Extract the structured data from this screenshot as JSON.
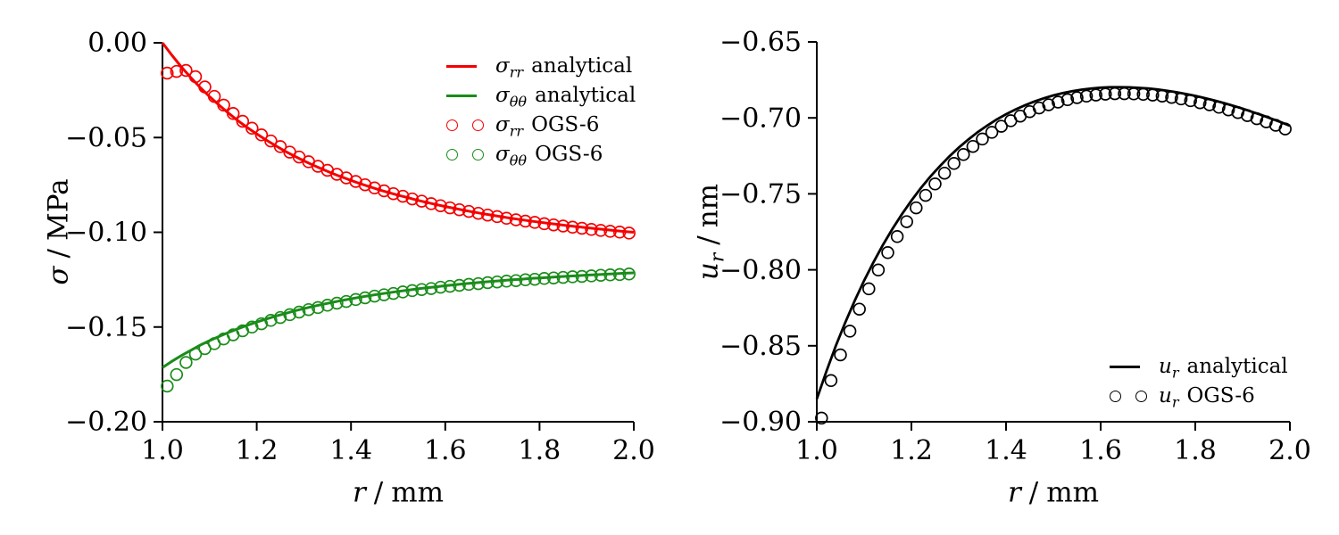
{
  "figure": {
    "background": "#ffffff"
  },
  "chart_data": [
    {
      "id": "stress-vs-radius",
      "type": "line",
      "xlabel": {
        "var": "r",
        "sub": "",
        "sep": "/",
        "unit": "mm"
      },
      "ylabel": {
        "var": "σ",
        "sub": "",
        "sep": "/",
        "unit": "MPa"
      },
      "xlim": [
        1.0,
        2.0
      ],
      "ylim": [
        -0.2,
        0.0
      ],
      "grid": false,
      "legend_position": "upper right",
      "xtick_values": [
        1.0,
        1.2,
        1.4,
        1.6,
        1.8,
        2.0
      ],
      "xtick_labels": [
        "1.0",
        "1.2",
        "1.4",
        "1.6",
        "1.8",
        "2.0"
      ],
      "ytick_values": [
        0.0,
        -0.05,
        -0.1,
        -0.15,
        -0.2
      ],
      "ytick_labels": [
        "0.00",
        "−0.05",
        "−0.10",
        "−0.15",
        "−0.20"
      ],
      "line_x": [
        1.0,
        1.02,
        1.04,
        1.06,
        1.08,
        1.1,
        1.12,
        1.14,
        1.16,
        1.18,
        1.2,
        1.22,
        1.24,
        1.26,
        1.28,
        1.3,
        1.32,
        1.34,
        1.36,
        1.38,
        1.4,
        1.42,
        1.44,
        1.46,
        1.48,
        1.5,
        1.52,
        1.54,
        1.56,
        1.58,
        1.6,
        1.62,
        1.64,
        1.66,
        1.68,
        1.7,
        1.72,
        1.74,
        1.76,
        1.78,
        1.8,
        1.82,
        1.84,
        1.86,
        1.88,
        1.9,
        1.92,
        1.94,
        1.96,
        1.98,
        2.0
      ],
      "point_x": [
        1.01,
        1.03,
        1.05,
        1.07,
        1.09,
        1.11,
        1.13,
        1.15,
        1.17,
        1.19,
        1.21,
        1.23,
        1.25,
        1.27,
        1.29,
        1.31,
        1.33,
        1.35,
        1.37,
        1.39,
        1.41,
        1.43,
        1.45,
        1.47,
        1.49,
        1.51,
        1.53,
        1.55,
        1.57,
        1.59,
        1.61,
        1.63,
        1.65,
        1.67,
        1.69,
        1.71,
        1.73,
        1.75,
        1.77,
        1.79,
        1.81,
        1.83,
        1.85,
        1.87,
        1.89,
        1.91,
        1.93,
        1.95,
        1.97,
        1.99
      ],
      "series": [
        {
          "name": "sigma_rr analytical",
          "kind": "line",
          "color": "#f40000",
          "width": 3,
          "x_ref": "line_x",
          "y": [
            0.0,
            -0.0066,
            -0.0127,
            -0.0183,
            -0.0236,
            -0.0284,
            -0.0329,
            -0.0371,
            -0.0411,
            -0.0447,
            -0.0481,
            -0.0513,
            -0.0543,
            -0.0572,
            -0.0598,
            -0.0623,
            -0.0646,
            -0.0668,
            -0.0689,
            -0.0708,
            -0.0726,
            -0.0744,
            -0.076,
            -0.0776,
            -0.079,
            -0.0804,
            -0.0817,
            -0.083,
            -0.0842,
            -0.0853,
            -0.0864,
            -0.0874,
            -0.0884,
            -0.0893,
            -0.0902,
            -0.091,
            -0.0918,
            -0.0926,
            -0.0933,
            -0.094,
            -0.0947,
            -0.0953,
            -0.0959,
            -0.0965,
            -0.0971,
            -0.0976,
            -0.0981,
            -0.0986,
            -0.0991,
            -0.0996,
            -0.1
          ]
        },
        {
          "name": "sigma_thetatheta analytical",
          "kind": "line",
          "color": "#1a8c1a",
          "width": 3,
          "x_ref": "line_x",
          "y": [
            -0.1714,
            -0.1681,
            -0.1651,
            -0.1623,
            -0.1596,
            -0.1572,
            -0.155,
            -0.1529,
            -0.1509,
            -0.1491,
            -0.1474,
            -0.1458,
            -0.1443,
            -0.1429,
            -0.1415,
            -0.1403,
            -0.1391,
            -0.138,
            -0.137,
            -0.136,
            -0.1351,
            -0.1342,
            -0.1334,
            -0.1326,
            -0.1319,
            -0.1312,
            -0.1306,
            -0.1299,
            -0.1293,
            -0.1288,
            -0.1282,
            -0.1277,
            -0.1272,
            -0.1268,
            -0.1263,
            -0.1259,
            -0.1255,
            -0.1251,
            -0.1248,
            -0.1244,
            -0.1241,
            -0.1238,
            -0.1235,
            -0.1232,
            -0.1229,
            -0.1226,
            -0.1224,
            -0.1221,
            -0.1219,
            -0.1216,
            -0.1214
          ]
        },
        {
          "name": "sigma_rr OGS-6",
          "kind": "scatter",
          "color": "#f40000",
          "radius": 6.4,
          "stroke": 1.7,
          "x_ref": "point_x",
          "y": [
            -0.016,
            -0.0151,
            -0.0146,
            -0.0179,
            -0.0233,
            -0.0283,
            -0.0329,
            -0.0373,
            -0.0414,
            -0.0451,
            -0.0486,
            -0.0518,
            -0.0548,
            -0.0577,
            -0.0603,
            -0.0628,
            -0.0652,
            -0.0673,
            -0.0694,
            -0.0713,
            -0.0732,
            -0.0749,
            -0.0766,
            -0.0781,
            -0.0796,
            -0.081,
            -0.0824,
            -0.0836,
            -0.0849,
            -0.086,
            -0.0871,
            -0.0881,
            -0.089,
            -0.09,
            -0.0909,
            -0.0917,
            -0.0926,
            -0.0934,
            -0.0941,
            -0.0948,
            -0.0955,
            -0.0961,
            -0.0967,
            -0.0973,
            -0.0979,
            -0.0985,
            -0.099,
            -0.0995,
            -0.0999,
            -0.1004
          ]
        },
        {
          "name": "sigma_thetatheta OGS-6",
          "kind": "scatter",
          "color": "#1a8c1a",
          "radius": 6.4,
          "stroke": 1.7,
          "x_ref": "point_x",
          "y": [
            -0.1812,
            -0.1751,
            -0.1687,
            -0.1643,
            -0.1614,
            -0.1588,
            -0.1563,
            -0.1541,
            -0.152,
            -0.15,
            -0.1483,
            -0.1465,
            -0.145,
            -0.1435,
            -0.1421,
            -0.1408,
            -0.1397,
            -0.1385,
            -0.1374,
            -0.1365,
            -0.1355,
            -0.1346,
            -0.1337,
            -0.133,
            -0.1323,
            -0.1315,
            -0.1308,
            -0.1302,
            -0.1297,
            -0.129,
            -0.1285,
            -0.128,
            -0.1275,
            -0.1271,
            -0.1266,
            -0.1262,
            -0.1258,
            -0.1255,
            -0.1251,
            -0.1248,
            -0.1244,
            -0.1241,
            -0.1238,
            -0.1235,
            -0.1233,
            -0.123,
            -0.1227,
            -0.1225,
            -0.1223,
            -0.122
          ]
        }
      ],
      "legend": [
        {
          "marker": "line",
          "color": "#f40000",
          "var": "σ",
          "sub": "rr",
          "label": "analytical"
        },
        {
          "marker": "line",
          "color": "#1a8c1a",
          "var": "σ",
          "sub": "θθ",
          "label": "analytical"
        },
        {
          "marker": "circles",
          "color": "#f40000",
          "var": "σ",
          "sub": "rr",
          "label": "OGS-6"
        },
        {
          "marker": "circles",
          "color": "#1a8c1a",
          "var": "σ",
          "sub": "θθ",
          "label": "OGS-6"
        }
      ]
    },
    {
      "id": "displacement-vs-radius",
      "type": "line",
      "xlabel": {
        "var": "r",
        "sub": "",
        "sep": "/",
        "unit": "mm"
      },
      "ylabel": {
        "var": "u",
        "sub": "r",
        "sep": "/",
        "unit": "nm"
      },
      "xlim": [
        1.0,
        2.0
      ],
      "ylim": [
        -0.9,
        -0.65
      ],
      "grid": false,
      "legend_position": "lower right",
      "xtick_values": [
        1.0,
        1.2,
        1.4,
        1.6,
        1.8,
        2.0
      ],
      "xtick_labels": [
        "1.0",
        "1.2",
        "1.4",
        "1.6",
        "1.8",
        "2.0"
      ],
      "ytick_values": [
        -0.65,
        -0.7,
        -0.75,
        -0.8,
        -0.85,
        -0.9
      ],
      "ytick_labels": [
        "−0.65",
        "−0.70",
        "−0.75",
        "−0.80",
        "−0.85",
        "−0.90"
      ],
      "line_x": [
        1.0,
        1.02,
        1.04,
        1.06,
        1.08,
        1.1,
        1.12,
        1.14,
        1.16,
        1.18,
        1.2,
        1.22,
        1.24,
        1.26,
        1.28,
        1.3,
        1.32,
        1.34,
        1.36,
        1.38,
        1.4,
        1.42,
        1.44,
        1.46,
        1.48,
        1.5,
        1.52,
        1.54,
        1.56,
        1.58,
        1.6,
        1.62,
        1.64,
        1.66,
        1.68,
        1.7,
        1.72,
        1.74,
        1.76,
        1.78,
        1.8,
        1.82,
        1.84,
        1.86,
        1.88,
        1.9,
        1.92,
        1.94,
        1.96,
        1.98,
        2.0
      ],
      "point_x": [
        1.01,
        1.03,
        1.05,
        1.07,
        1.09,
        1.11,
        1.13,
        1.15,
        1.17,
        1.19,
        1.21,
        1.23,
        1.25,
        1.27,
        1.29,
        1.31,
        1.33,
        1.35,
        1.37,
        1.39,
        1.41,
        1.43,
        1.45,
        1.47,
        1.49,
        1.51,
        1.53,
        1.55,
        1.57,
        1.59,
        1.61,
        1.63,
        1.65,
        1.67,
        1.69,
        1.71,
        1.73,
        1.75,
        1.77,
        1.79,
        1.81,
        1.83,
        1.85,
        1.87,
        1.89,
        1.91,
        1.93,
        1.95,
        1.97,
        1.99
      ],
      "series": [
        {
          "name": "u_r analytical",
          "kind": "line",
          "color": "#000000",
          "width": 2.8,
          "x_ref": "line_x",
          "y": [
            -0.8851,
            -0.8671,
            -0.8502,
            -0.8348,
            -0.8204,
            -0.8071,
            -0.7949,
            -0.7835,
            -0.773,
            -0.7634,
            -0.7544,
            -0.7462,
            -0.7387,
            -0.7318,
            -0.7254,
            -0.7196,
            -0.7143,
            -0.7094,
            -0.7051,
            -0.7011,
            -0.6976,
            -0.6945,
            -0.6917,
            -0.6892,
            -0.6871,
            -0.6852,
            -0.6837,
            -0.6824,
            -0.6814,
            -0.6807,
            -0.6801,
            -0.6798,
            -0.6798,
            -0.6799,
            -0.6802,
            -0.6806,
            -0.6813,
            -0.6821,
            -0.6831,
            -0.6843,
            -0.6855,
            -0.687,
            -0.6885,
            -0.6902,
            -0.692,
            -0.6939,
            -0.696,
            -0.6981,
            -0.7004,
            -0.7027,
            -0.7052
          ]
        },
        {
          "name": "u_r OGS-6",
          "kind": "scatter",
          "color": "#000000",
          "radius": 6.4,
          "stroke": 1.7,
          "x_ref": "point_x",
          "y": [
            -0.8976,
            -0.8729,
            -0.856,
            -0.8404,
            -0.8259,
            -0.8125,
            -0.8001,
            -0.7887,
            -0.7781,
            -0.7683,
            -0.7592,
            -0.751,
            -0.7435,
            -0.7364,
            -0.73,
            -0.7241,
            -0.7188,
            -0.7139,
            -0.7095,
            -0.7055,
            -0.7019,
            -0.6988,
            -0.6959,
            -0.6935,
            -0.6914,
            -0.6896,
            -0.688,
            -0.6867,
            -0.6857,
            -0.685,
            -0.6844,
            -0.6841,
            -0.6841,
            -0.6842,
            -0.6845,
            -0.685,
            -0.6856,
            -0.6865,
            -0.6875,
            -0.6887,
            -0.69,
            -0.6914,
            -0.693,
            -0.6947,
            -0.6965,
            -0.6985,
            -0.7005,
            -0.7026,
            -0.7049,
            -0.7073
          ]
        }
      ],
      "legend": [
        {
          "marker": "line",
          "color": "#000000",
          "var": "u",
          "sub": "r",
          "label": "analytical"
        },
        {
          "marker": "circles",
          "color": "#000000",
          "var": "u",
          "sub": "r",
          "label": "OGS-6"
        }
      ]
    }
  ]
}
